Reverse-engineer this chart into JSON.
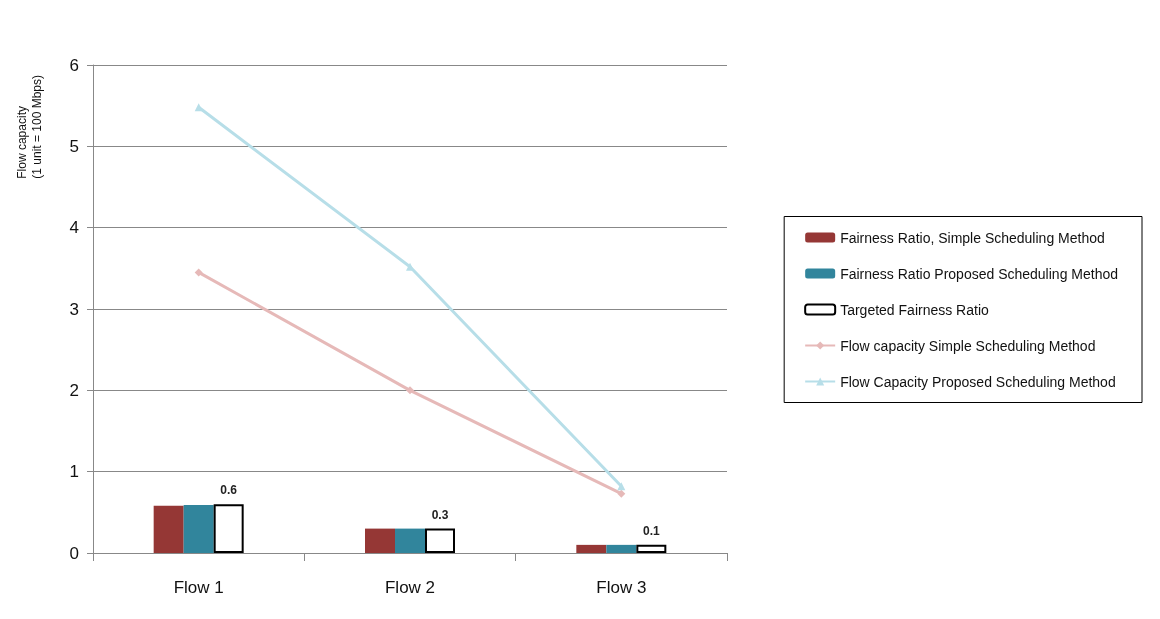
{
  "chart_data": {
    "type": "bar",
    "ylabel": "Flow capacity\n(1 unit = 100 Mbps)",
    "categories": [
      "Flow 1",
      "Flow 2",
      "Flow 3"
    ],
    "series": [
      {
        "name": "Fairness Ratio, Simple Scheduling Method",
        "color": "#953735",
        "values": [
          0.58,
          0.3,
          0.1
        ]
      },
      {
        "name": "Fairness Ratio Proposed Scheduling Method",
        "color": "#31859c",
        "values": [
          0.59,
          0.3,
          0.1
        ]
      },
      {
        "name": "Targeted Fairness Ratio",
        "color": "#ffffff",
        "values": [
          0.6,
          0.3,
          0.1
        ],
        "value_labels": [
          "0.6",
          "0.3",
          "0.1"
        ]
      },
      {
        "name": "Flow capacity Simple Scheduling Method",
        "type": "line",
        "marker": "diamond",
        "color": "#e6b9b8",
        "values": [
          3.45,
          2.0,
          0.73
        ]
      },
      {
        "name": "Flow Capacity Proposed Scheduling Method",
        "type": "line",
        "marker": "triangle",
        "color": "#b7dee8",
        "values": [
          5.48,
          3.52,
          0.82
        ]
      }
    ],
    "ylim": [
      0,
      6
    ],
    "yticks": [
      0,
      1,
      2,
      3,
      4,
      5,
      6
    ],
    "grid": "y",
    "legend": "right"
  }
}
